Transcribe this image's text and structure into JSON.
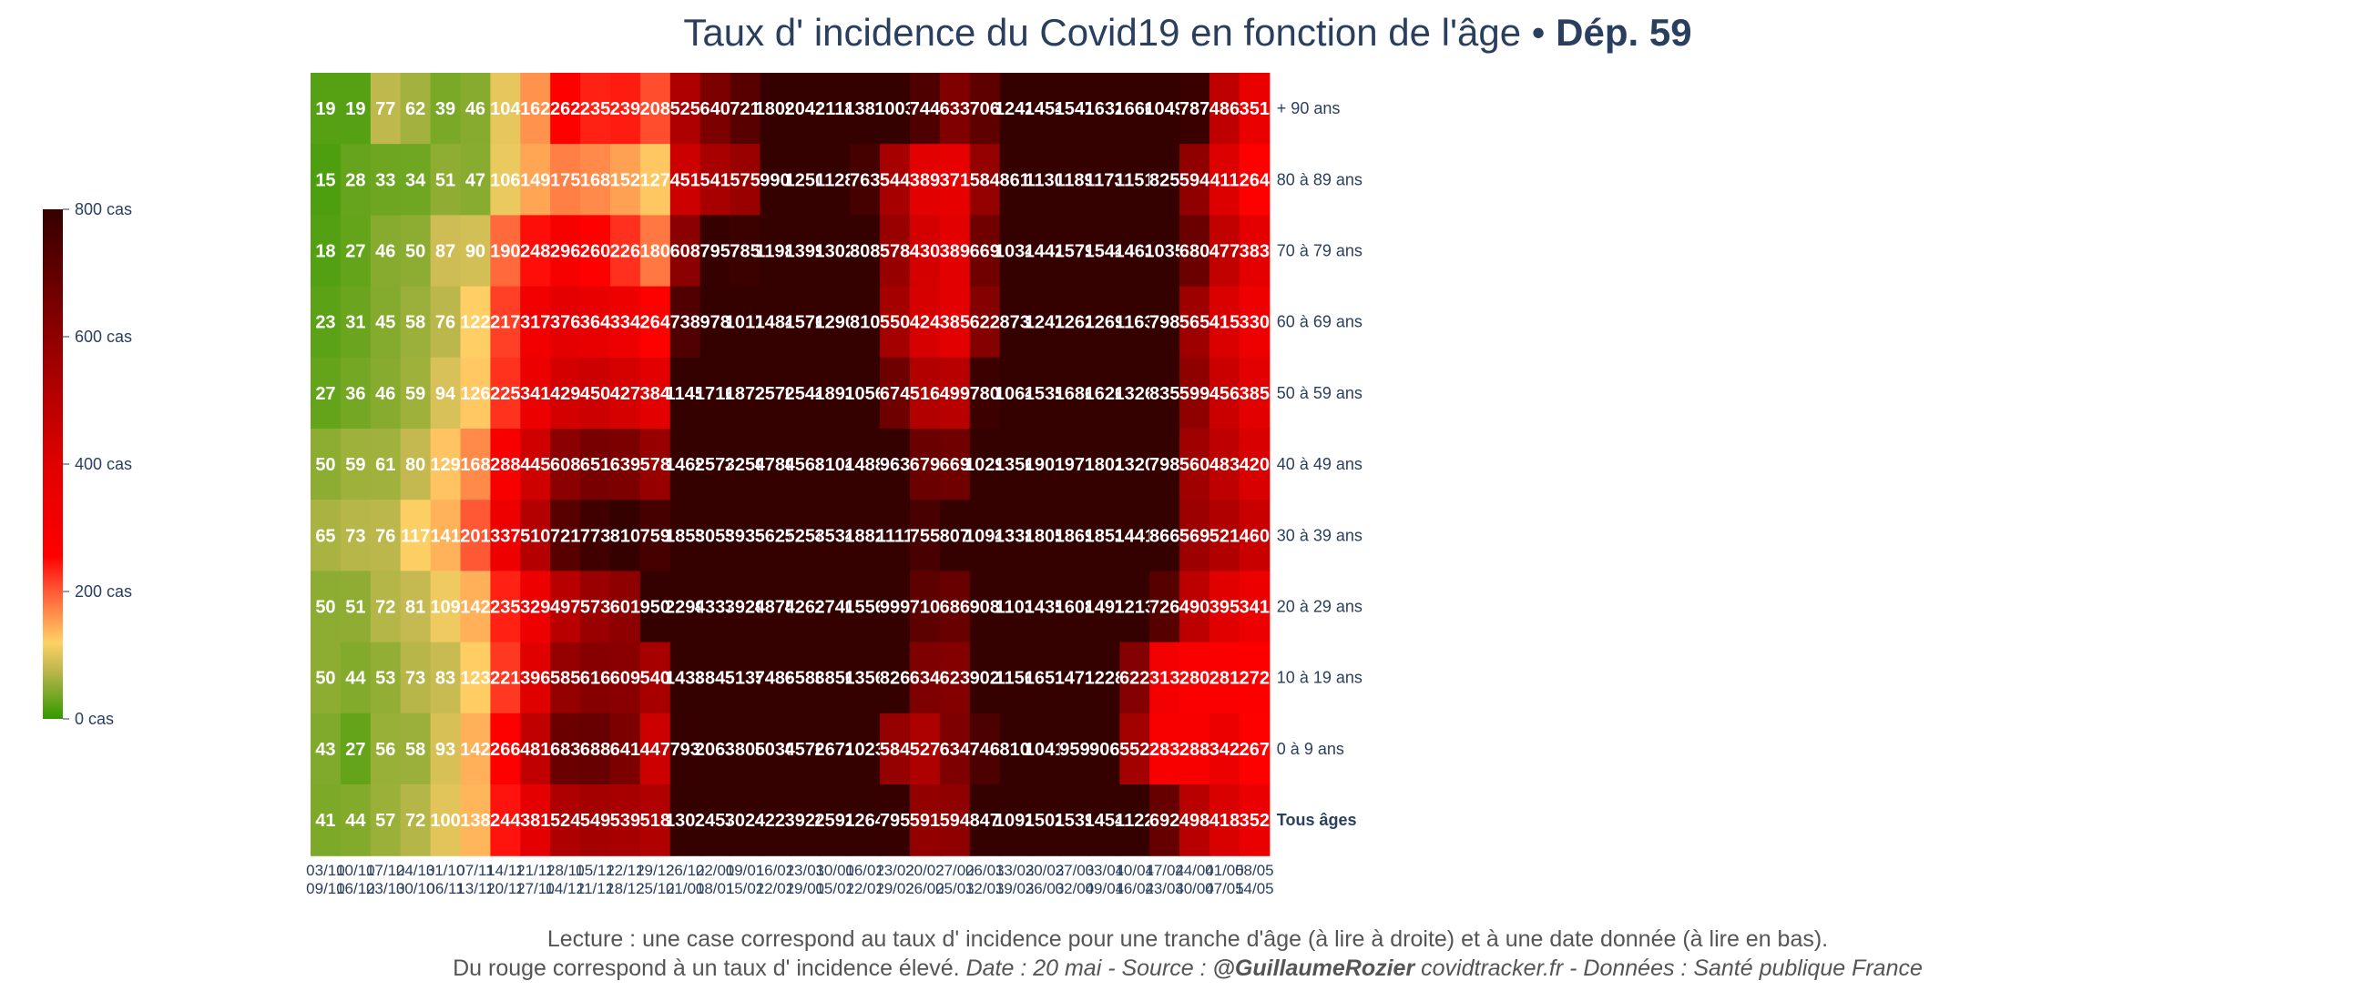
{
  "title": {
    "main": "Taux d' incidence du Covid19 en fonction de l'âge",
    "separator": " • ",
    "dept": "Dép. 59"
  },
  "legend": {
    "labels": [
      "800 cas",
      "600 cas",
      "400 cas",
      "200 cas",
      "0 cas"
    ],
    "ticks": [
      800,
      600,
      400,
      200,
      0
    ],
    "colorscale": [
      [
        0,
        "#339900"
      ],
      [
        0.1,
        "#c3b950"
      ],
      [
        0.15,
        "#ffd166"
      ],
      [
        0.25,
        "#ff5a36"
      ],
      [
        0.32,
        "#ff0000"
      ],
      [
        0.5,
        "#e00000"
      ],
      [
        0.7,
        "#a00000"
      ],
      [
        0.85,
        "#6b0000"
      ],
      [
        1,
        "#340000"
      ]
    ],
    "zmax": 800
  },
  "footer": {
    "line1": "Lecture : une case correspond au taux d' incidence pour une tranche d'âge (à lire à droite) et à une date donnée (à lire en bas).",
    "line2_plain": "Du rouge correspond à un taux d' incidence élevé.  ",
    "line2_date": "Date : 20 mai - Source : ",
    "line2_author": "@GuillaumeRozier",
    "line2_rest": " covidtracker.fr - Données : Santé publique France"
  },
  "chart_data": {
    "type": "heatmap",
    "x": [
      [
        "03/10",
        "09/10"
      ],
      [
        "10/10",
        "16/10"
      ],
      [
        "17/10",
        "23/10"
      ],
      [
        "24/10",
        "30/10"
      ],
      [
        "31/10",
        "06/11"
      ],
      [
        "07/11",
        "13/11"
      ],
      [
        "14/11",
        "20/11"
      ],
      [
        "21/11",
        "27/11"
      ],
      [
        "28/11",
        "04/12"
      ],
      [
        "05/12",
        "11/12"
      ],
      [
        "12/12",
        "18/12"
      ],
      [
        "19/12",
        "25/12"
      ],
      [
        "26/12",
        "01/01"
      ],
      [
        "02/01",
        "08/01"
      ],
      [
        "09/01",
        "15/01"
      ],
      [
        "16/01",
        "22/01"
      ],
      [
        "23/01",
        "29/01"
      ],
      [
        "30/01",
        "05/02"
      ],
      [
        "06/02",
        "12/02"
      ],
      [
        "13/02",
        "19/02"
      ],
      [
        "20/02",
        "26/02"
      ],
      [
        "27/02",
        "05/03"
      ],
      [
        "06/03",
        "12/03"
      ],
      [
        "13/03",
        "19/03"
      ],
      [
        "20/03",
        "26/03"
      ],
      [
        "27/03",
        "02/04"
      ],
      [
        "03/04",
        "09/04"
      ],
      [
        "10/04",
        "16/04"
      ],
      [
        "17/04",
        "23/04"
      ],
      [
        "24/04",
        "30/04"
      ],
      [
        "01/05",
        "07/05"
      ],
      [
        "08/05",
        "14/05"
      ]
    ],
    "y": [
      "+ 90 ans",
      "80 à 89 ans",
      "70 à 79 ans",
      "60 à 69 ans",
      "50 à 59 ans",
      "40 à 49 ans",
      "30 à 39 ans",
      "20 à 29 ans",
      "10 à 19 ans",
      "0 à 9 ans",
      "Tous âges"
    ],
    "z": [
      [
        19,
        19,
        77,
        62,
        39,
        46,
        104,
        162,
        262,
        235,
        239,
        208,
        525,
        640,
        721,
        1809,
        2041,
        2118,
        1381,
        1003,
        744,
        633,
        706,
        1242,
        1454,
        1547,
        1632,
        1666,
        1049,
        787,
        486,
        351
      ],
      [
        15,
        28,
        33,
        34,
        51,
        47,
        106,
        149,
        175,
        168,
        152,
        127,
        451,
        541,
        575,
        990,
        1250,
        1128,
        763,
        544,
        389,
        371,
        584,
        861,
        1130,
        1189,
        1173,
        1151,
        825,
        594,
        411,
        264
      ],
      [
        18,
        27,
        46,
        50,
        87,
        90,
        190,
        248,
        296,
        260,
        226,
        180,
        608,
        795,
        785,
        1198,
        1399,
        1302,
        808,
        578,
        430,
        389,
        669,
        1034,
        1442,
        1579,
        1544,
        1463,
        1035,
        680,
        477,
        383
      ],
      [
        23,
        31,
        45,
        58,
        76,
        122,
        217,
        317,
        376,
        364,
        334,
        264,
        738,
        978,
        1017,
        1484,
        1576,
        1290,
        810,
        550,
        424,
        385,
        622,
        873,
        1247,
        1262,
        1269,
        1163,
        798,
        565,
        415,
        330
      ],
      [
        27,
        36,
        46,
        59,
        94,
        126,
        225,
        341,
        429,
        450,
        427,
        384,
        1145,
        1716,
        1872,
        2570,
        2544,
        1893,
        1056,
        674,
        516,
        499,
        780,
        1064,
        1535,
        1686,
        1626,
        1326,
        835,
        599,
        456,
        385
      ],
      [
        50,
        59,
        61,
        80,
        129,
        168,
        288,
        445,
        608,
        651,
        639,
        578,
        1465,
        2572,
        3259,
        4789,
        4568,
        3104,
        1488,
        963,
        679,
        669,
        1029,
        1356,
        1901,
        1971,
        1802,
        1320,
        798,
        560,
        483,
        420
      ],
      [
        65,
        73,
        76,
        117,
        141,
        201,
        337,
        510,
        721,
        773,
        810,
        759,
        1855,
        3055,
        3933,
        5621,
        5254,
        3534,
        1882,
        1111,
        755,
        807,
        1094,
        1338,
        1805,
        1869,
        1853,
        1441,
        866,
        569,
        521,
        460
      ],
      [
        50,
        51,
        72,
        81,
        109,
        142,
        235,
        329,
        497,
        573,
        601,
        950,
        2299,
        4337,
        3929,
        4875,
        4263,
        2740,
        1556,
        999,
        710,
        686,
        908,
        1103,
        1435,
        1608,
        1497,
        1213,
        726,
        490,
        395,
        341
      ],
      [
        50,
        44,
        53,
        73,
        83,
        123,
        221,
        396,
        585,
        616,
        609,
        540,
        1438,
        3843,
        5135,
        7489,
        6580,
        3856,
        1356,
        826,
        634,
        623,
        902,
        1156,
        1651,
        1471,
        1228,
        622,
        313,
        280,
        281,
        272
      ],
      [
        43,
        27,
        56,
        58,
        93,
        142,
        266,
        481,
        683,
        688,
        641,
        447,
        793,
        2063,
        3800,
        5030,
        4576,
        2672,
        1023,
        584,
        527,
        634,
        746,
        810,
        1041,
        959,
        906,
        552,
        283,
        288,
        342,
        267
      ],
      [
        41,
        44,
        57,
        72,
        100,
        138,
        244,
        381,
        524,
        549,
        539,
        518,
        1302,
        2457,
        3024,
        4223,
        3924,
        2592,
        1264,
        795,
        591,
        594,
        847,
        1092,
        1502,
        1539,
        1454,
        1122,
        692,
        498,
        418,
        352
      ]
    ]
  }
}
